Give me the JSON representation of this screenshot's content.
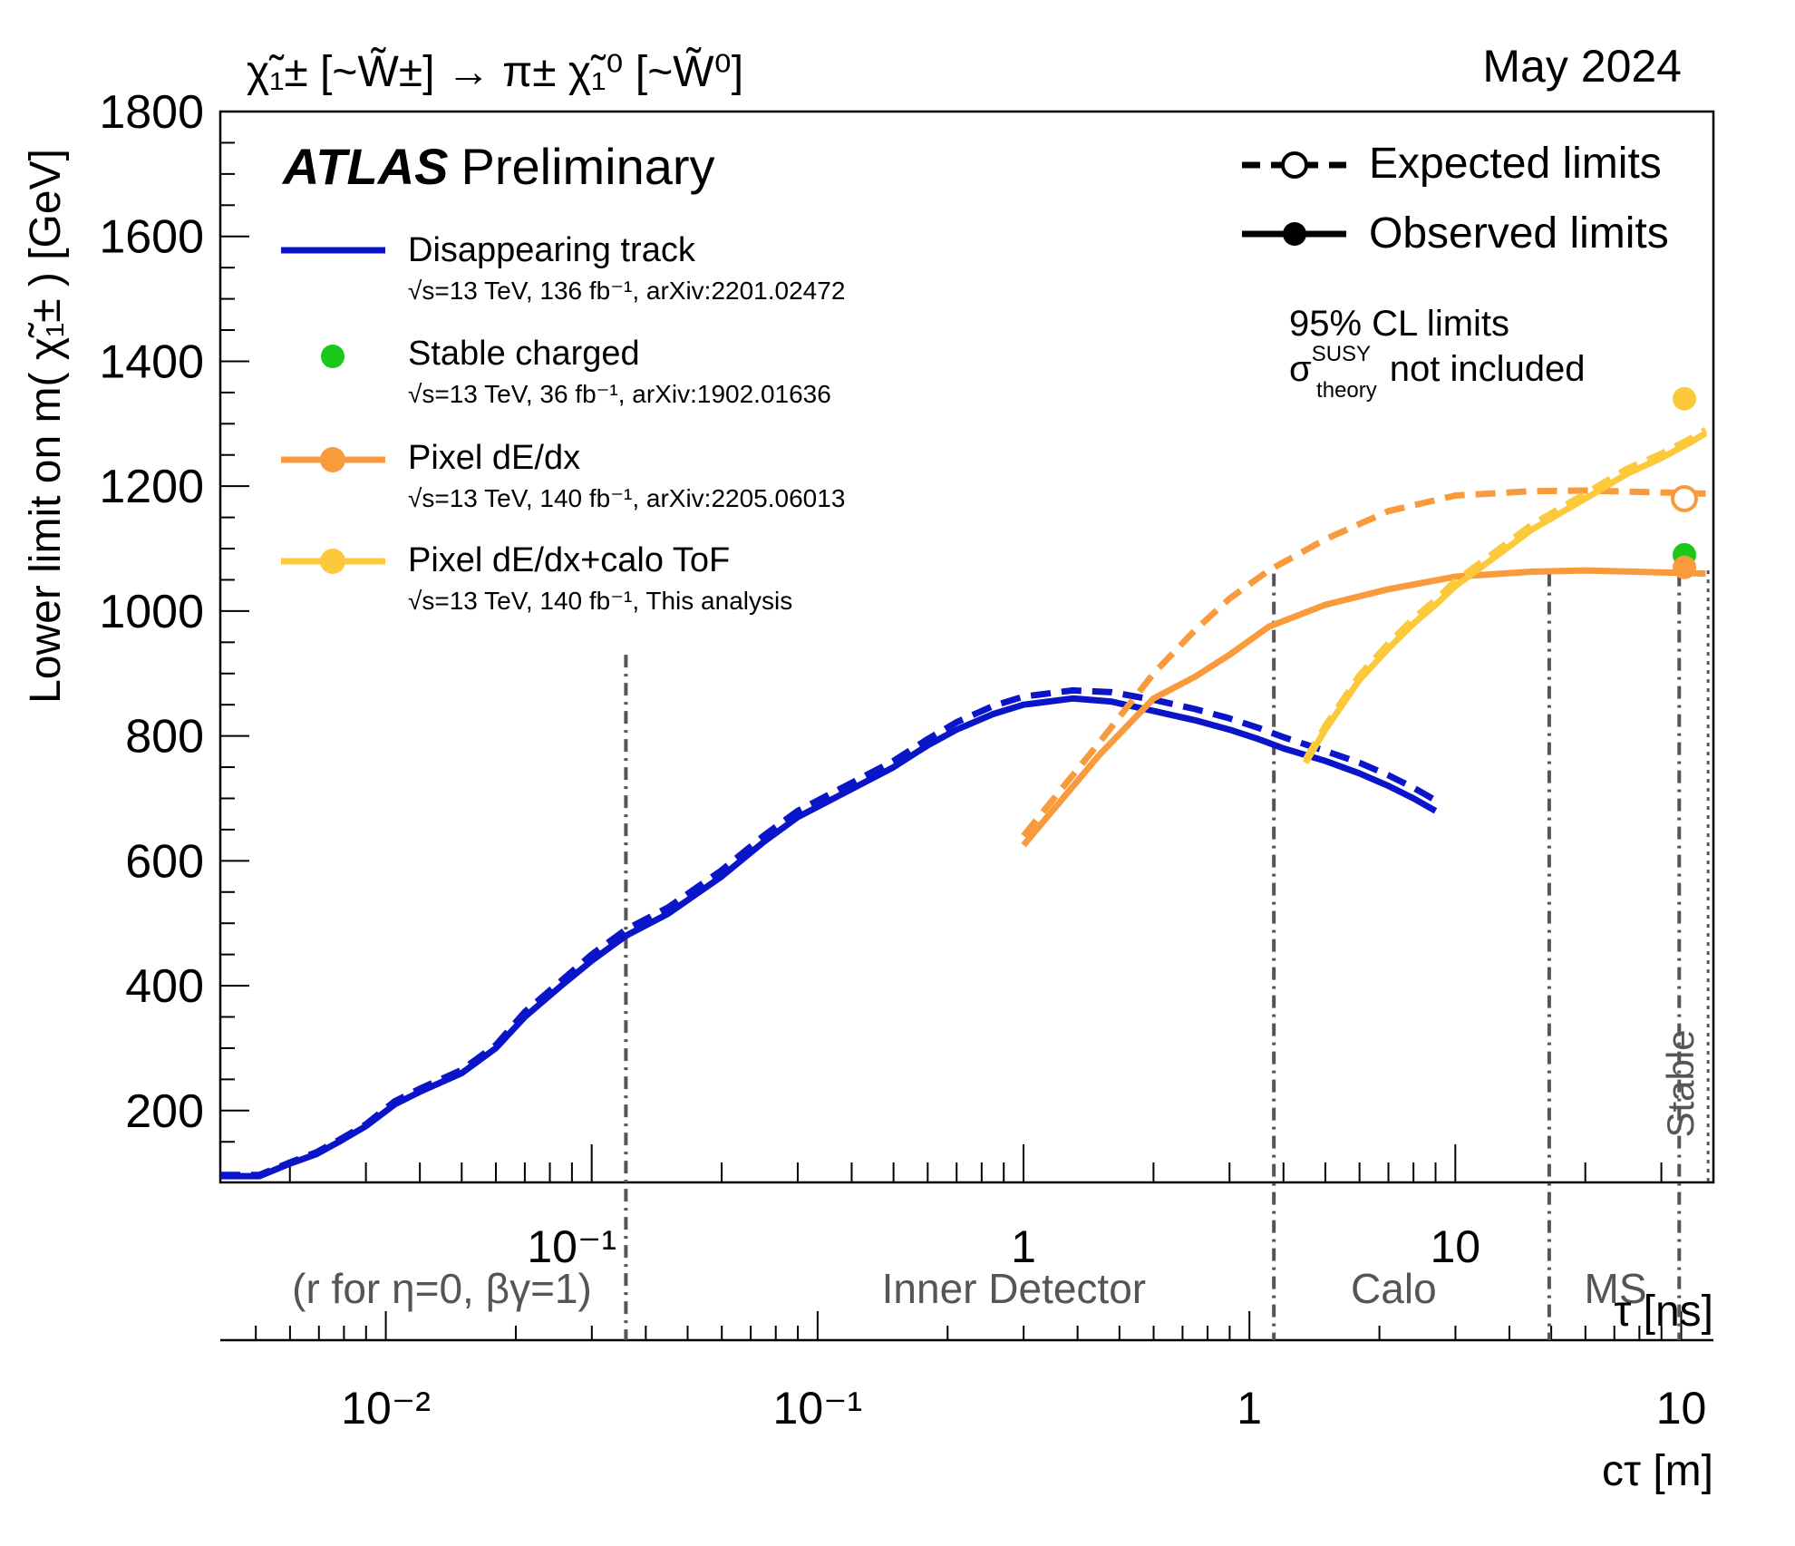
{
  "title": {
    "process_lhs": "χ̃",
    "process_text": "χ̃₁± [~W̃±] → π± χ̃₁⁰ [~W̃⁰]",
    "date": "May 2024"
  },
  "atlas": {
    "bold": "ATLAS",
    "label": "Preliminary"
  },
  "legend": {
    "entries": [
      {
        "name": "Disappearing track",
        "sub": "√s=13 TeV, 136 fb⁻¹, arXiv:2201.02472",
        "color": "#0a14c8",
        "marker": false
      },
      {
        "name": "Stable charged",
        "sub": "√s=13 TeV, 36 fb⁻¹, arXiv:1902.01636",
        "color": "#19c819",
        "marker": true
      },
      {
        "name": "Pixel dE/dx",
        "sub": "√s=13 TeV, 140 fb⁻¹, arXiv:2205.06013",
        "color": "#f99a3d",
        "marker": true
      },
      {
        "name": "Pixel dE/dx+calo ToF",
        "sub": "√s=13 TeV, 140 fb⁻¹, This analysis",
        "color": "#fbc93a",
        "marker": true
      }
    ],
    "expected": "Expected limits",
    "observed": "Observed limits",
    "cl": "95% CL limits",
    "sigma_sym": "σ",
    "sigma_sup": "SUSY",
    "sigma_sub": "theory",
    "sigma_text": "not included"
  },
  "chart_data": {
    "type": "line",
    "title": "χ̃₁± [~W̃±] → π± χ̃₁⁰ [~W̃⁰]",
    "ylabel": "Lower limit on m( χ̃₁± ) [GeV]",
    "xlabel_top": "τ [ns]",
    "xlabel_bottom": "cτ [m]",
    "x_scale": "log",
    "x_units": "tau_ns",
    "xlim_tau_ns": [
      0.0138,
      39.6
    ],
    "ylim": [
      85,
      1800
    ],
    "yticks": [
      200,
      400,
      600,
      800,
      1000,
      1200,
      1400,
      1600,
      1800
    ],
    "tau_tick_labels": [
      "10⁻¹",
      "1",
      "10"
    ],
    "tau_tick_values": [
      0.1,
      1,
      10
    ],
    "ctau_tick_labels": [
      "10⁻²",
      "10⁻¹",
      "1",
      "10"
    ],
    "ctau_tick_values_m": [
      0.01,
      0.1,
      1,
      10
    ],
    "regions": [
      {
        "label": "(r for η=0, βγ=1)",
        "start_tau_ns": null,
        "end_tau_ns": 0.12
      },
      {
        "label": "Inner Detector",
        "start_tau_ns": 0.12,
        "end_tau_ns": 3.8
      },
      {
        "label": "Calo",
        "start_tau_ns": 3.8,
        "end_tau_ns": 16.5
      },
      {
        "label": "MS",
        "start_tau_ns": 16.5,
        "end_tau_ns": 33.0
      }
    ],
    "stable_label": "Stable",
    "series": [
      {
        "name": "Disappearing track (observed)",
        "style": "solid",
        "color": "#0a14c8",
        "x": [
          0.0138,
          0.015,
          0.017,
          0.02,
          0.023,
          0.026,
          0.03,
          0.035,
          0.04,
          0.05,
          0.06,
          0.07,
          0.085,
          0.1,
          0.12,
          0.15,
          0.2,
          0.25,
          0.3,
          0.4,
          0.5,
          0.6,
          0.7,
          0.85,
          1.0,
          1.3,
          1.6,
          2.0,
          2.5,
          3.0,
          3.5,
          4.0,
          5.0,
          6.0,
          7.0,
          8.0,
          9.0
        ],
        "values": [
          95,
          95,
          95,
          115,
          130,
          150,
          175,
          210,
          230,
          260,
          300,
          350,
          400,
          440,
          480,
          515,
          575,
          630,
          670,
          715,
          750,
          785,
          810,
          835,
          850,
          860,
          855,
          840,
          825,
          810,
          795,
          780,
          760,
          740,
          720,
          700,
          680
        ]
      },
      {
        "name": "Disappearing track (expected)",
        "style": "dashed",
        "color": "#0a14c8",
        "x": [
          0.0138,
          0.015,
          0.017,
          0.02,
          0.023,
          0.026,
          0.03,
          0.035,
          0.04,
          0.05,
          0.06,
          0.07,
          0.085,
          0.1,
          0.12,
          0.15,
          0.2,
          0.25,
          0.3,
          0.4,
          0.5,
          0.6,
          0.7,
          0.85,
          1.0,
          1.3,
          1.6,
          2.0,
          2.5,
          3.0,
          3.5,
          4.0,
          5.0,
          6.0,
          7.0,
          8.0,
          9.0
        ],
        "values": [
          97,
          97,
          97,
          117,
          133,
          153,
          178,
          215,
          235,
          265,
          305,
          358,
          408,
          450,
          490,
          525,
          585,
          640,
          680,
          725,
          760,
          795,
          822,
          848,
          863,
          873,
          870,
          858,
          843,
          828,
          813,
          798,
          776,
          757,
          737,
          717,
          697
        ]
      },
      {
        "name": "Pixel dE/dx (observed)",
        "style": "solid",
        "color": "#f99a3d",
        "x": [
          1.0,
          1.5,
          2.0,
          2.5,
          3.0,
          3.7,
          5.0,
          7.0,
          10.0,
          15.0,
          20.0,
          30.0,
          38.0
        ],
        "values": [
          625,
          770,
          860,
          895,
          930,
          975,
          1010,
          1035,
          1055,
          1063,
          1065,
          1062,
          1060
        ]
      },
      {
        "name": "Pixel dE/dx (expected)",
        "style": "dashed",
        "color": "#f99a3d",
        "x": [
          1.0,
          1.5,
          2.0,
          2.5,
          3.0,
          3.7,
          5.0,
          7.0,
          10.0,
          15.0,
          20.0,
          30.0,
          38.0
        ],
        "values": [
          640,
          790,
          900,
          970,
          1020,
          1065,
          1115,
          1160,
          1185,
          1192,
          1193,
          1190,
          1188
        ]
      },
      {
        "name": "Pixel dE/dx+calo ToF (observed)",
        "style": "solid",
        "color": "#fbc93a",
        "x": [
          4.5,
          5.0,
          6.0,
          7.0,
          8.0,
          9.0,
          10.0,
          12.0,
          15.0,
          20.0,
          25.0,
          30.0,
          35.0,
          38.0
        ],
        "values": [
          757,
          810,
          890,
          940,
          980,
          1010,
          1040,
          1080,
          1130,
          1180,
          1220,
          1245,
          1270,
          1285
        ]
      },
      {
        "name": "Pixel dE/dx+calo ToF (expected)",
        "style": "dashed",
        "color": "#fbc93a",
        "x": [
          4.5,
          5.0,
          6.0,
          7.0,
          8.0,
          9.0,
          10.0,
          12.0,
          15.0,
          20.0,
          25.0,
          30.0,
          35.0,
          38.0
        ],
        "values": [
          762,
          816,
          897,
          948,
          988,
          1018,
          1048,
          1088,
          1138,
          1188,
          1228,
          1252,
          1276,
          1290
        ]
      }
    ],
    "stable_points": [
      {
        "name": "Pixel dE/dx+calo ToF observed",
        "value": 1340,
        "color": "#fbc93a",
        "filled": true
      },
      {
        "name": "Pixel dE/dx expected",
        "value": 1180,
        "color": "#f99a3d",
        "filled": false
      },
      {
        "name": "Stable charged observed",
        "value": 1090,
        "color": "#19c819",
        "filled": true
      },
      {
        "name": "Pixel dE/dx observed",
        "value": 1070,
        "color": "#f99a3d",
        "filled": true
      }
    ]
  }
}
